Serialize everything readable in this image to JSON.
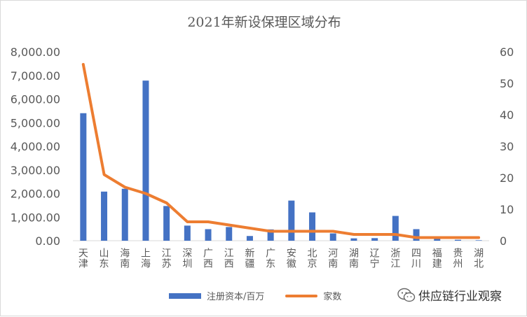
{
  "chart_data": {
    "type": "bar+line",
    "title": "2021年新设保理区域分布",
    "categories": [
      "天津",
      "山东",
      "海南",
      "上海",
      "江苏",
      "深圳",
      "广西",
      "江西",
      "新疆",
      "广东",
      "安徽",
      "北京",
      "河南",
      "湖南",
      "辽宁",
      "浙江",
      "四川",
      "福建",
      "贵州",
      "湖北"
    ],
    "series": [
      {
        "name": "注册资本/百万",
        "type": "bar",
        "axis": "left",
        "values": [
          5400,
          2080,
          2200,
          6780,
          1470,
          640,
          490,
          580,
          200,
          480,
          1700,
          1200,
          310,
          100,
          110,
          1050,
          490,
          80,
          40,
          20
        ]
      },
      {
        "name": "家数",
        "type": "line",
        "axis": "right",
        "values": [
          56,
          21,
          17,
          15,
          12,
          6,
          6,
          5,
          4,
          3,
          3,
          3,
          3,
          2,
          2,
          2,
          1,
          1,
          1,
          1
        ]
      }
    ],
    "y_left": {
      "min": 0,
      "max": 8000,
      "step": 1000,
      "tick_labels": [
        "0.00",
        "1,000.00",
        "2,000.00",
        "3,000.00",
        "4,000.00",
        "5,000.00",
        "6,000.00",
        "7,000.00",
        "8,000.00"
      ]
    },
    "y_right": {
      "min": 0,
      "max": 60,
      "step": 10,
      "tick_labels": [
        "0",
        "10",
        "20",
        "30",
        "40",
        "50",
        "60"
      ]
    },
    "grid": false,
    "legend_position": "bottom",
    "colors": {
      "bar": "#4472c4",
      "line": "#ed7d31",
      "axis_text": "#595959"
    }
  },
  "watermark": {
    "text": "供应链行业观察",
    "icon": "wechat-icon"
  }
}
